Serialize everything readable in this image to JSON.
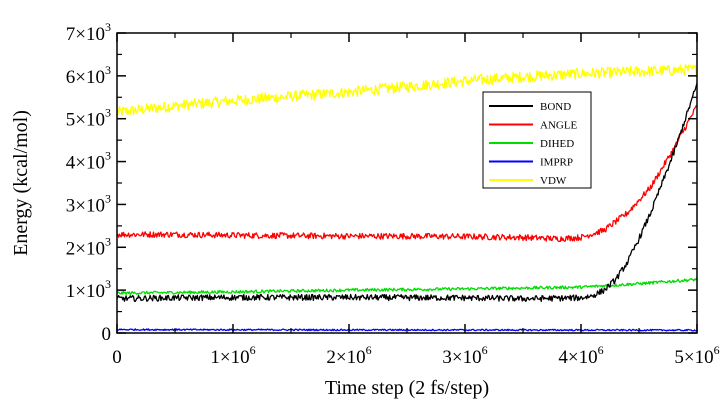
{
  "chart_data": {
    "type": "line",
    "xlabel": "Time step (2 fs/step)",
    "ylabel": "Energy (kcal/mol)",
    "xlim": [
      0,
      5000000
    ],
    "ylim": [
      0,
      7000
    ],
    "x_ticks": [
      {
        "value": 0,
        "mant": "0",
        "exp": ""
      },
      {
        "value": 1000000,
        "mant": "1×10",
        "exp": "6"
      },
      {
        "value": 2000000,
        "mant": "2×10",
        "exp": "6"
      },
      {
        "value": 3000000,
        "mant": "3×10",
        "exp": "6"
      },
      {
        "value": 4000000,
        "mant": "4×10",
        "exp": "6"
      },
      {
        "value": 5000000,
        "mant": "5×10",
        "exp": "6"
      }
    ],
    "y_ticks": [
      {
        "value": 0,
        "mant": "0",
        "exp": ""
      },
      {
        "value": 1000,
        "mant": "1×10",
        "exp": "3"
      },
      {
        "value": 2000,
        "mant": "2×10",
        "exp": "3"
      },
      {
        "value": 3000,
        "mant": "3×10",
        "exp": "3"
      },
      {
        "value": 4000,
        "mant": "4×10",
        "exp": "3"
      },
      {
        "value": 5000,
        "mant": "5×10",
        "exp": "3"
      },
      {
        "value": 6000,
        "mant": "6×10",
        "exp": "3"
      },
      {
        "value": 7000,
        "mant": "7×10",
        "exp": "3"
      }
    ],
    "legend_position": "right-middle",
    "grid": false,
    "series": [
      {
        "name": "VDW",
        "color": "#ffff00",
        "noise": 130,
        "x": [
          0,
          500000,
          1000000,
          1500000,
          2000000,
          2500000,
          3000000,
          3500000,
          4000000,
          4500000,
          5000000
        ],
        "y": [
          5150,
          5300,
          5420,
          5520,
          5620,
          5750,
          5880,
          5980,
          6050,
          6100,
          6150
        ]
      },
      {
        "name": "ANGLE",
        "color": "#ff0000",
        "noise": 70,
        "x": [
          0,
          500000,
          1000000,
          1500000,
          2000000,
          2500000,
          3000000,
          3500000,
          3800000,
          4000000,
          4200000,
          4400000,
          4600000,
          4800000,
          5000000
        ],
        "y": [
          2300,
          2300,
          2280,
          2270,
          2260,
          2260,
          2250,
          2230,
          2200,
          2230,
          2400,
          2800,
          3400,
          4300,
          5300
        ]
      },
      {
        "name": "DIHED",
        "color": "#00dd00",
        "noise": 35,
        "x": [
          0,
          1000000,
          2000000,
          3000000,
          4000000,
          4500000,
          5000000
        ],
        "y": [
          930,
          960,
          1000,
          1030,
          1070,
          1150,
          1250
        ]
      },
      {
        "name": "BOND",
        "color": "#000000",
        "noise": 70,
        "x": [
          0,
          500000,
          1000000,
          2000000,
          3000000,
          3500000,
          4000000,
          4100000,
          4200000,
          4300000,
          4400000,
          4500000,
          4600000,
          4700000,
          4800000,
          4900000,
          5000000
        ],
        "y": [
          800,
          820,
          830,
          830,
          820,
          800,
          820,
          870,
          1000,
          1250,
          1650,
          2200,
          2800,
          3500,
          4200,
          5000,
          5800
        ]
      },
      {
        "name": "IMPRP",
        "color": "#0000ff",
        "noise": 18,
        "x": [
          0,
          1000000,
          2000000,
          3000000,
          4000000,
          5000000
        ],
        "y": [
          80,
          75,
          72,
          70,
          68,
          65
        ]
      }
    ],
    "legend_order": [
      "BOND",
      "ANGLE",
      "DIHED",
      "IMPRP",
      "VDW"
    ]
  }
}
